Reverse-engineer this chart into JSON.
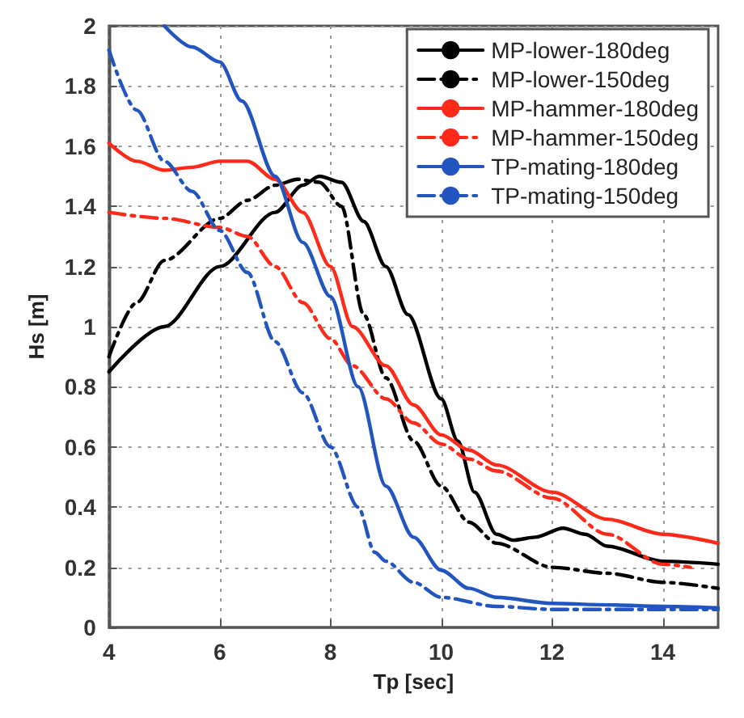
{
  "chart_data": {
    "type": "line",
    "xlabel": "Tp [sec]",
    "ylabel": "Hs [m]",
    "xlim": [
      4,
      15
    ],
    "xticks": [
      4,
      6,
      8,
      10,
      12,
      14
    ],
    "ylim": [
      0,
      2
    ],
    "yticks": [
      0,
      0.2,
      0.4,
      0.6,
      0.8,
      1,
      1.2,
      1.4,
      1.6,
      1.8,
      2
    ],
    "grid": true,
    "legend": "top right",
    "marker": "none",
    "series": [
      {
        "name": "MP-lower-180deg",
        "color": "#000000",
        "line_style": "solid",
        "x": [
          4,
          5,
          6,
          7,
          7.5,
          7.8,
          8.2,
          8.6,
          9,
          9.4,
          10,
          10.3,
          10.6,
          11,
          11.3,
          11.7,
          12.2,
          12.6,
          13,
          14,
          15
        ],
        "values": [
          0.85,
          1.0,
          1.2,
          1.38,
          1.47,
          1.5,
          1.48,
          1.35,
          1.2,
          1.04,
          0.76,
          0.62,
          0.45,
          0.31,
          0.29,
          0.3,
          0.33,
          0.31,
          0.27,
          0.22,
          0.21
        ]
      },
      {
        "name": "MP-lower-150deg",
        "color": "#000000",
        "line_style": "dashed",
        "x": [
          4,
          4.5,
          5,
          6,
          6.5,
          7,
          7.4,
          7.8,
          8.2,
          8.6,
          9,
          9.5,
          10,
          10.5,
          11,
          12,
          13,
          14,
          15
        ],
        "values": [
          0.9,
          1.08,
          1.22,
          1.36,
          1.42,
          1.47,
          1.49,
          1.48,
          1.4,
          1.04,
          0.83,
          0.62,
          0.47,
          0.35,
          0.28,
          0.2,
          0.18,
          0.15,
          0.13
        ]
      },
      {
        "name": "MP-hammer-180deg",
        "color": "#ff2a1a",
        "line_style": "solid",
        "x": [
          4,
          4.5,
          5,
          5.5,
          6,
          6.5,
          7,
          7.5,
          8,
          8.4,
          9,
          9.5,
          10,
          10.5,
          11,
          12,
          13,
          14,
          15
        ],
        "values": [
          1.61,
          1.55,
          1.52,
          1.53,
          1.55,
          1.55,
          1.49,
          1.38,
          1.2,
          1.0,
          0.87,
          0.74,
          0.64,
          0.59,
          0.54,
          0.45,
          0.36,
          0.31,
          0.28
        ]
      },
      {
        "name": "MP-hammer-150deg",
        "color": "#ff2a1a",
        "line_style": "dashed",
        "x": [
          4,
          5,
          6,
          6.5,
          7,
          7.5,
          8,
          8.4,
          9,
          9.5,
          10,
          10.5,
          11,
          12,
          13,
          14,
          14.5
        ],
        "values": [
          1.38,
          1.36,
          1.33,
          1.3,
          1.2,
          1.08,
          0.96,
          0.87,
          0.76,
          0.68,
          0.61,
          0.56,
          0.52,
          0.43,
          0.31,
          0.21,
          0.2
        ]
      },
      {
        "name": "TP-mating-180deg",
        "color": "#2255c0",
        "line_style": "solid",
        "x": [
          5,
          5.5,
          6,
          6.4,
          7,
          7.5,
          8,
          8.5,
          9,
          9.5,
          10,
          10.5,
          11,
          12,
          13,
          14,
          15
        ],
        "values": [
          2.0,
          1.93,
          1.88,
          1.75,
          1.5,
          1.28,
          1.1,
          0.8,
          0.47,
          0.3,
          0.19,
          0.13,
          0.1,
          0.08,
          0.075,
          0.07,
          0.065
        ]
      },
      {
        "name": "TP-mating-150deg",
        "color": "#2255c0",
        "line_style": "dashed",
        "x": [
          4,
          4.5,
          5,
          5.5,
          6,
          6.5,
          7,
          7.5,
          8,
          8.5,
          8.8,
          9,
          9.5,
          10,
          11,
          12,
          13,
          14,
          15
        ],
        "values": [
          1.92,
          1.72,
          1.55,
          1.45,
          1.32,
          1.18,
          0.95,
          0.78,
          0.6,
          0.4,
          0.25,
          0.22,
          0.15,
          0.1,
          0.07,
          0.06,
          0.06,
          0.06,
          0.06
        ]
      }
    ]
  }
}
